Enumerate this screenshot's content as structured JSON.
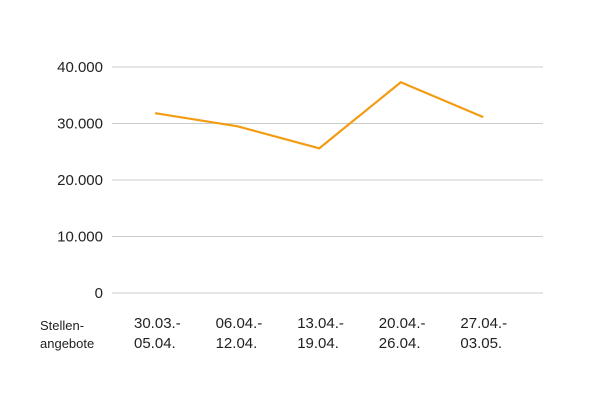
{
  "chart_data": {
    "type": "line",
    "ylabel": "Stellen-\nangebote",
    "categories": [
      "30.03.-\n05.04.",
      "06.04.-\n12.04.",
      "13.04.-\n19.04.",
      "20.04.-\n26.04.",
      "27.04.-\n03.05."
    ],
    "series": [
      {
        "values": [
          31800,
          29500,
          25600,
          37300,
          31200
        ]
      }
    ],
    "y_ticks": [
      "0",
      "10.000",
      "20.000",
      "30.000",
      "40.000"
    ],
    "ylim": [
      0,
      40000
    ],
    "grid": true,
    "line_color": "#F39C12",
    "grid_color": "#CCCCCC"
  }
}
